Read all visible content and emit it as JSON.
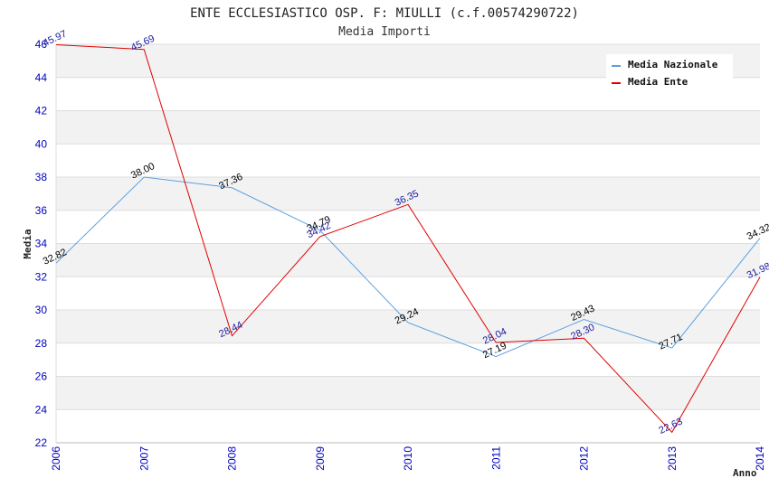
{
  "chart_data": {
    "type": "line",
    "title": "ENTE ECCLESIASTICO OSP. F: MIULLI (c.f.00574290722)",
    "subtitle": "Media Importi",
    "xlabel": "Anno",
    "ylabel": "Media",
    "ylim": [
      22,
      46
    ],
    "yticks": [
      22,
      24,
      26,
      28,
      30,
      32,
      34,
      36,
      38,
      40,
      42,
      44,
      46
    ],
    "categories": [
      "2006",
      "2007",
      "2008",
      "2009",
      "2010",
      "2011",
      "2012",
      "2013",
      "2014"
    ],
    "series": [
      {
        "name": "Media Nazionale",
        "color": "#5aa0e0",
        "label_color": "#000000",
        "values": [
          32.82,
          38.0,
          37.36,
          34.79,
          29.24,
          27.19,
          29.43,
          27.71,
          34.32
        ],
        "labels": [
          "32.82",
          "38.00",
          "37.36",
          "34.79",
          "29.24",
          "27.19",
          "29.43",
          "27.71",
          "34.32"
        ]
      },
      {
        "name": "Media Ente",
        "color": "#e00000",
        "label_color": "#1a1aa0",
        "values": [
          45.97,
          45.69,
          28.44,
          34.42,
          36.35,
          28.04,
          28.3,
          22.63,
          31.98
        ],
        "labels": [
          "45.97",
          "45.69",
          "28.44",
          "34.42",
          "36.35",
          "28.04",
          "28.30",
          "22.63",
          "31.98"
        ]
      }
    ],
    "grid": true,
    "legend_position": "top-right",
    "tick_color": "#0000c0"
  }
}
